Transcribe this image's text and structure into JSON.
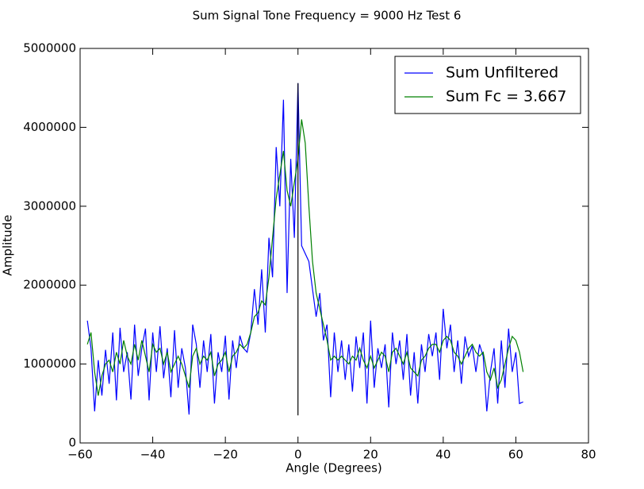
{
  "chart_data": {
    "type": "line",
    "title": "Sum Signal Tone Frequency = 9000 Hz Test 6",
    "xlabel": "Angle (Degrees)",
    "ylabel": "Amplitude",
    "x": [
      -58,
      -57,
      -56,
      -55,
      -54,
      -53,
      -52,
      -51,
      -50,
      -49,
      -48,
      -47,
      -46,
      -45,
      -44,
      -43,
      -42,
      -41,
      -40,
      -39,
      -38,
      -37,
      -36,
      -35,
      -34,
      -33,
      -32,
      -31,
      -30,
      -29,
      -28,
      -27,
      -26,
      -25,
      -24,
      -23,
      -22,
      -21,
      -20,
      -19,
      -18,
      -17,
      -16,
      -15,
      -14,
      -13,
      -12,
      -11,
      -10,
      -9,
      -8,
      -7,
      -6,
      -5,
      -4,
      -3,
      -2,
      -1,
      0,
      1,
      2,
      3,
      4,
      5,
      6,
      7,
      8,
      9,
      10,
      11,
      12,
      13,
      14,
      15,
      16,
      17,
      18,
      19,
      20,
      21,
      22,
      23,
      24,
      25,
      26,
      27,
      28,
      29,
      30,
      31,
      32,
      33,
      34,
      35,
      36,
      37,
      38,
      39,
      40,
      41,
      42,
      43,
      44,
      45,
      46,
      47,
      48,
      49,
      50,
      51,
      52,
      53,
      54,
      55,
      56,
      57,
      58,
      59,
      60,
      61,
      62
    ],
    "series": [
      {
        "name": "Sum Unfiltered",
        "color": "#0000ff",
        "values": [
          1550000,
          1200000,
          400000,
          1050000,
          600000,
          1180000,
          750000,
          1400000,
          540000,
          1460000,
          900000,
          1150000,
          550000,
          1500000,
          850000,
          1200000,
          1450000,
          540000,
          1400000,
          900000,
          1480000,
          820000,
          1200000,
          580000,
          1430000,
          700000,
          1200000,
          950000,
          360000,
          1500000,
          1250000,
          700000,
          1300000,
          900000,
          1380000,
          500000,
          1150000,
          900000,
          1360000,
          550000,
          1300000,
          950000,
          1360000,
          1200000,
          1150000,
          1400000,
          1950000,
          1500000,
          2200000,
          1400000,
          2600000,
          2100000,
          3750000,
          3000000,
          4350000,
          1900000,
          3600000,
          2600000,
          4560000,
          2500000,
          2400000,
          2300000,
          1950000,
          1600000,
          1900000,
          1300000,
          1500000,
          580000,
          1400000,
          900000,
          1300000,
          800000,
          1250000,
          650000,
          1350000,
          950000,
          1400000,
          500000,
          1550000,
          700000,
          1200000,
          950000,
          1250000,
          450000,
          1400000,
          1000000,
          1300000,
          800000,
          1380000,
          600000,
          1150000,
          500000,
          1250000,
          900000,
          1380000,
          1100000,
          1400000,
          800000,
          1700000,
          1200000,
          1500000,
          900000,
          1300000,
          750000,
          1350000,
          1100000,
          1230000,
          900000,
          1250000,
          1100000,
          400000,
          900000,
          1200000,
          500000,
          1300000,
          700000,
          1450000,
          900000,
          1150000,
          500000,
          520000
        ]
      },
      {
        "name": "Sum Fc = 3.667",
        "color": "#008000",
        "values": [
          1250000,
          1400000,
          900000,
          600000,
          850000,
          1000000,
          1050000,
          900000,
          1150000,
          1000000,
          1300000,
          1100000,
          1000000,
          1250000,
          1050000,
          1300000,
          1100000,
          900000,
          1250000,
          1150000,
          1200000,
          1000000,
          1150000,
          900000,
          1000000,
          1100000,
          1000000,
          850000,
          700000,
          1100000,
          1200000,
          1000000,
          1100000,
          1050000,
          1150000,
          850000,
          1000000,
          1050000,
          1150000,
          900000,
          1100000,
          1150000,
          1250000,
          1200000,
          1250000,
          1400000,
          1600000,
          1650000,
          1800000,
          1750000,
          2100000,
          2600000,
          3100000,
          3400000,
          3700000,
          3200000,
          3000000,
          3300000,
          3600000,
          4100000,
          3800000,
          3000000,
          2300000,
          1900000,
          1700000,
          1500000,
          1300000,
          1050000,
          1100000,
          1050000,
          1100000,
          1050000,
          1000000,
          1100000,
          1050000,
          1200000,
          1050000,
          950000,
          1100000,
          950000,
          1050000,
          1150000,
          1100000,
          900000,
          1150000,
          1200000,
          1100000,
          1000000,
          1150000,
          950000,
          900000,
          850000,
          1050000,
          1100000,
          1200000,
          1250000,
          1250000,
          1150000,
          1300000,
          1350000,
          1300000,
          1150000,
          1100000,
          1000000,
          1100000,
          1200000,
          1250000,
          1150000,
          1100000,
          1150000,
          900000,
          800000,
          950000,
          700000,
          800000,
          1000000,
          1200000,
          1350000,
          1300000,
          1150000,
          900000
        ]
      }
    ],
    "vline": {
      "x": 0,
      "ymin": 350000,
      "ymax": 4560000,
      "color": "#000000"
    },
    "xlim": [
      -60,
      80
    ],
    "xticks": [
      {
        "value": -60,
        "label": "−60"
      },
      {
        "value": -40,
        "label": "−40"
      },
      {
        "value": -20,
        "label": "−20"
      },
      0,
      20,
      40,
      60,
      80
    ],
    "ylim": [
      0,
      5000000
    ],
    "yticks": [
      0,
      1000000,
      2000000,
      3000000,
      4000000,
      5000000
    ],
    "grid": false,
    "legend": "upper right"
  }
}
